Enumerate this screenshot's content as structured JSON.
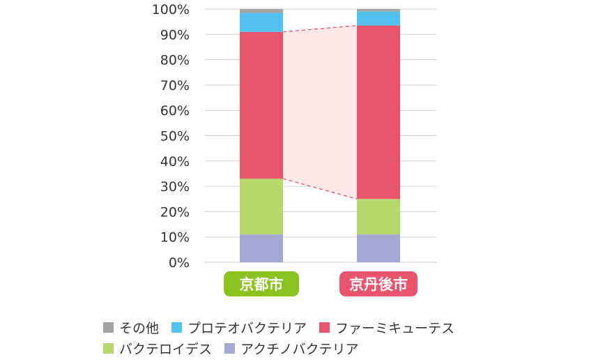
{
  "chart_data": {
    "type": "bar",
    "stacked": true,
    "categories": [
      "京都市",
      "京丹後市"
    ],
    "category_colors": [
      "#8cc21f",
      "#e8536d"
    ],
    "ylim": [
      0,
      100
    ],
    "yticks": [
      "0%",
      "10%",
      "20%",
      "30%",
      "40%",
      "50%",
      "60%",
      "70%",
      "80%",
      "90%",
      "100%"
    ],
    "grid": true,
    "series": [
      {
        "name": "アクチノバクテリア",
        "color": "#a3a9d5",
        "values": [
          11,
          11
        ]
      },
      {
        "name": "バクテロイデス",
        "color": "#b5d76b",
        "values": [
          22,
          14
        ]
      },
      {
        "name": "ファーミキューテス",
        "color": "#e8536d",
        "values": [
          58,
          68.5
        ]
      },
      {
        "name": "プロテオバクテリア",
        "color": "#52c3f1",
        "values": [
          7.5,
          5.5
        ]
      },
      {
        "name": "その他",
        "color": "#a3a3a3",
        "values": [
          1.5,
          1
        ]
      }
    ],
    "highlight_band": {
      "series": "ファーミキューテス",
      "color": "#fde8e8",
      "line_color": "#e8536d"
    },
    "legend": {
      "placement": "bottom",
      "rows": [
        [
          "その他",
          "プロテオバクテリア",
          "ファーミキューテス"
        ],
        [
          "バクテロイデス",
          "アクチノバクテリア"
        ]
      ]
    }
  }
}
